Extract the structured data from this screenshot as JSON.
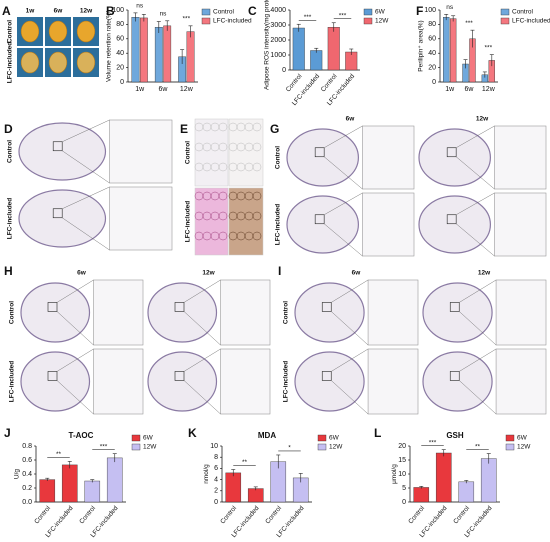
{
  "image_panels": [
    {
      "letter": "A",
      "columns": [
        "1w",
        "6w",
        "12w"
      ],
      "rows": [
        "Control",
        "LFC-included"
      ]
    },
    {
      "letter": "D",
      "rows": [
        "Control",
        "LFC-included"
      ]
    },
    {
      "letter": "E",
      "rows": [
        "Control",
        "LFC-included"
      ]
    },
    {
      "letter": "G",
      "columns": [
        "6w",
        "12w"
      ],
      "rows": [
        "Control",
        "LFC-included"
      ]
    },
    {
      "letter": "H",
      "columns": [
        "6w",
        "12w"
      ],
      "rows": [
        "Control",
        "LFC-included"
      ]
    },
    {
      "letter": "I",
      "columns": [
        "6w",
        "12w"
      ],
      "rows": [
        "Control",
        "LFC-included"
      ]
    }
  ],
  "chart_data": [
    {
      "type": "bar",
      "panel": "B",
      "ylabel": "Volume retention rate(%)",
      "categories": [
        "1w",
        "6w",
        "12w"
      ],
      "series": [
        {
          "name": "Control",
          "color": "#6fa8dc",
          "values": [
            90,
            76,
            35
          ],
          "errors": [
            6,
            8,
            10
          ]
        },
        {
          "name": "LFC-included",
          "color": "#f4777f",
          "values": [
            89,
            78,
            70
          ],
          "errors": [
            5,
            7,
            8
          ]
        }
      ],
      "ylim": [
        0,
        100
      ],
      "yticks": [
        0,
        20,
        40,
        60,
        80,
        100
      ],
      "annotations": [
        "ns",
        "ns",
        "***"
      ],
      "legend": "upper right"
    },
    {
      "type": "bar",
      "panel": "C",
      "ylabel": "Adipose ROS intensity(mg protein)",
      "categories": [
        "Control",
        "LFC-included",
        "Control",
        "LFC-included"
      ],
      "series": [
        {
          "name": "6W",
          "color": "#5b9bd5",
          "values": [
            2800,
            1300,
            null,
            null
          ],
          "errors": [
            250,
            150,
            null,
            null
          ]
        },
        {
          "name": "12W",
          "color": "#f0676f",
          "values": [
            null,
            null,
            2850,
            1200
          ],
          "errors": [
            null,
            null,
            300,
            200
          ]
        }
      ],
      "ylim": [
        0,
        4000
      ],
      "yticks": [
        0,
        1000,
        2000,
        3000,
        4000
      ],
      "annotations": [
        "***",
        "***"
      ],
      "legend": "upper right"
    },
    {
      "type": "bar",
      "panel": "F",
      "ylabel": "Perilipin⁺ area(%)",
      "categories": [
        "1w",
        "6w",
        "12w"
      ],
      "series": [
        {
          "name": "Control",
          "color": "#6fa8dc",
          "values": [
            90,
            25,
            10
          ],
          "errors": [
            4,
            6,
            4
          ]
        },
        {
          "name": "LFC-included",
          "color": "#f4777f",
          "values": [
            88,
            60,
            30
          ],
          "errors": [
            4,
            12,
            8
          ]
        }
      ],
      "ylim": [
        0,
        100
      ],
      "yticks": [
        0,
        20,
        40,
        60,
        80,
        100
      ],
      "annotations": [
        "ns",
        "***",
        "***"
      ],
      "legend": "upper right"
    },
    {
      "type": "bar",
      "panel": "J",
      "title": "T-AOC",
      "ylabel": "U/g",
      "categories": [
        "Control",
        "LFC-included",
        "Control",
        "LFC-included"
      ],
      "series": [
        {
          "name": "6W",
          "color": "#e8383d",
          "values": [
            0.32,
            0.53,
            null,
            null
          ],
          "errors": [
            0.02,
            0.05,
            null,
            null
          ]
        },
        {
          "name": "12W",
          "color": "#c5bff2",
          "values": [
            null,
            null,
            0.3,
            0.63
          ],
          "errors": [
            null,
            null,
            0.02,
            0.06
          ]
        }
      ],
      "ylim": [
        0,
        0.8
      ],
      "yticks": [
        {
          "value": 0,
          "label": "0.0"
        },
        0.2,
        0.4,
        0.6,
        0.8
      ],
      "annotations": [
        "**",
        "***"
      ],
      "legend": "upper right"
    },
    {
      "type": "bar",
      "panel": "K",
      "title": "MDA",
      "ylabel": "nmol/g",
      "categories": [
        "Control",
        "LFC-included",
        "Control",
        "LFC-included"
      ],
      "series": [
        {
          "name": "6W",
          "color": "#e8383d",
          "values": [
            5.2,
            2.4,
            null,
            null
          ],
          "errors": [
            0.6,
            0.3,
            null,
            null
          ]
        },
        {
          "name": "12W",
          "color": "#c5bff2",
          "values": [
            null,
            null,
            7.2,
            4.3
          ],
          "errors": [
            null,
            null,
            1.2,
            0.8
          ]
        }
      ],
      "ylim": [
        0,
        10
      ],
      "yticks": [
        0,
        2,
        4,
        6,
        8,
        10
      ],
      "annotations": [
        "**",
        "*"
      ],
      "legend": "upper right"
    },
    {
      "type": "bar",
      "panel": "L",
      "title": "GSH",
      "ylabel": "μmol/g",
      "categories": [
        "Control",
        "LFC-included",
        "Control",
        "LFC-included"
      ],
      "series": [
        {
          "name": "6W",
          "color": "#e8383d",
          "values": [
            5.2,
            17.5,
            null,
            null
          ],
          "errors": [
            0.4,
            1.2,
            null,
            null
          ]
        },
        {
          "name": "12W",
          "color": "#c5bff2",
          "values": [
            null,
            null,
            7.2,
            15.5
          ],
          "errors": [
            null,
            null,
            0.5,
            1.8
          ]
        }
      ],
      "ylim": [
        0,
        20
      ],
      "yticks": [
        0,
        5,
        10,
        15,
        20
      ],
      "annotations": [
        "***",
        "**"
      ],
      "legend": "upper right"
    }
  ]
}
